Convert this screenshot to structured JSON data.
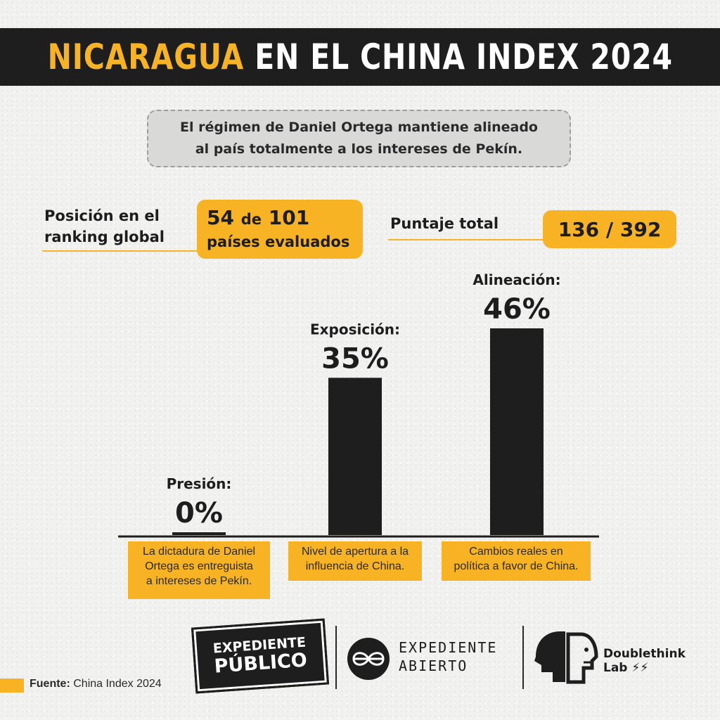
{
  "header": {
    "title_highlight": "NICARAGUA",
    "title_rest": "EN EL CHINA INDEX 2024"
  },
  "subtitle": {
    "line1": "El régimen de Daniel Ortega mantiene alineado",
    "line2": "al país totalmente a los intereses de Pekín."
  },
  "ranking": {
    "label_line1": "Posición en el",
    "label_line2": "ranking global",
    "position": "54",
    "connector": "de",
    "total": "101",
    "unit": "países  evaluados"
  },
  "score": {
    "label": "Puntaje total",
    "value": "136 / 392"
  },
  "chart_data": {
    "type": "bar",
    "categories": [
      "Presión:",
      "Exposición:",
      "Alineación:"
    ],
    "values": [
      0,
      35,
      46
    ],
    "value_labels": [
      "0%",
      "35%",
      "46%"
    ],
    "descriptions": [
      [
        "La dictadura de Daniel",
        "Ortega es entreguista",
        "a intereses de Pekín."
      ],
      [
        "Nivel de apertura a la",
        "influencia de China."
      ],
      [
        "Cambios reales en",
        "política a favor de China."
      ]
    ],
    "ylim": [
      0,
      46
    ],
    "grid": false,
    "bar_color": "#1e1e1e"
  },
  "logos": {
    "expediente_publico": [
      "EXPEDIENTE",
      "PÚBLICO"
    ],
    "expediente_abierto": [
      "EXPEDIENTE",
      "ABIERTO"
    ],
    "doublethink": [
      "Doublethink",
      "Lab"
    ]
  },
  "source": {
    "label": "Fuente:",
    "value": "China Index 2024"
  },
  "colors": {
    "accent": "#f8b324",
    "dark": "#1e1e1e"
  }
}
